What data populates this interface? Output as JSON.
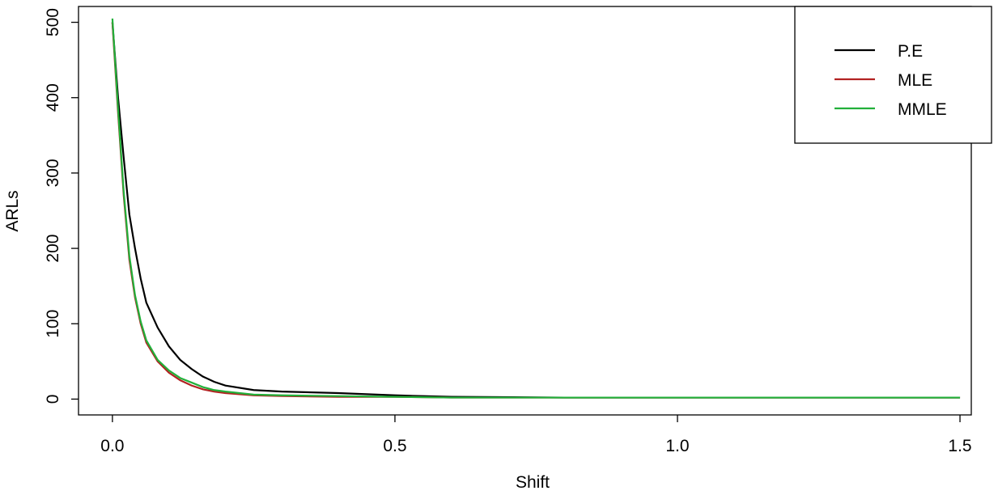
{
  "chart_data": {
    "type": "line",
    "xlabel": "Shift",
    "ylabel": "ARLs",
    "x": [
      0,
      0.01,
      0.02,
      0.03,
      0.04,
      0.05,
      0.06,
      0.08,
      0.1,
      0.12,
      0.14,
      0.16,
      0.18,
      0.2,
      0.25,
      0.3,
      0.4,
      0.5,
      0.6,
      0.8,
      1.0,
      1.5
    ],
    "series": [
      {
        "name": "P.E",
        "color": "#000000",
        "values": [
          500,
          400,
          320,
          245,
          200,
          160,
          128,
          95,
          70,
          52,
          40,
          30,
          23,
          18,
          12,
          10,
          8,
          5,
          3,
          2,
          2,
          2
        ]
      },
      {
        "name": "MLE",
        "color": "#b22222",
        "values": [
          500,
          380,
          270,
          185,
          135,
          100,
          75,
          50,
          35,
          25,
          18,
          13,
          10,
          8,
          5,
          4,
          3,
          3,
          2,
          2,
          2,
          2
        ]
      },
      {
        "name": "MMLE",
        "color": "#22b03a",
        "values": [
          505,
          385,
          275,
          190,
          138,
          103,
          78,
          52,
          38,
          28,
          22,
          16,
          12,
          10,
          6,
          5,
          4,
          3,
          2,
          2,
          2,
          2
        ]
      }
    ],
    "xlim": [
      -0.06,
      1.52
    ],
    "ylim": [
      -21,
      521
    ],
    "xticks": [
      {
        "value": 0,
        "label": "0.0"
      },
      0.5,
      {
        "value": 1,
        "label": "1.0"
      },
      1.5
    ],
    "yticks": [
      0,
      100,
      200,
      300,
      400,
      500
    ],
    "legend": "topright"
  }
}
